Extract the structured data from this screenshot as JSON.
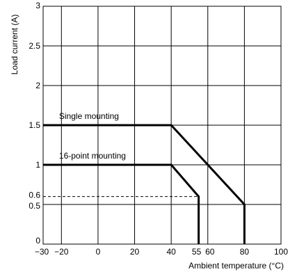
{
  "chart_data": {
    "type": "line",
    "xlabel": "Ambient temperature (°C)",
    "ylabel": "Load current (A)",
    "xlim": [
      -30,
      100
    ],
    "ylim": [
      0,
      3
    ],
    "x_ticks": [
      "−30",
      "−20",
      "0",
      "20",
      "40",
      "55",
      "60",
      "80",
      "100"
    ],
    "x_tick_values": [
      -30,
      -20,
      0,
      20,
      40,
      55,
      60,
      80,
      100
    ],
    "y_ticks": [
      "0",
      "0.5",
      "0.6",
      "1",
      "1.5",
      "2",
      "2.5",
      "3"
    ],
    "y_tick_values": [
      0,
      0.5,
      0.6,
      1,
      1.5,
      2,
      2.5,
      3
    ],
    "x_grid": [
      -20,
      0,
      20,
      40,
      60,
      80
    ],
    "y_grid": [
      0.5,
      1,
      1.5,
      2,
      2.5
    ],
    "grid": true,
    "series": [
      {
        "name": "Single mounting",
        "points": [
          [
            -30,
            1.5
          ],
          [
            40,
            1.5
          ],
          [
            80,
            0.5
          ],
          [
            80,
            0
          ]
        ]
      },
      {
        "name": "16-point mounting",
        "points": [
          [
            -30,
            1.0
          ],
          [
            40,
            1.0
          ],
          [
            55,
            0.6
          ],
          [
            55,
            0
          ]
        ]
      }
    ],
    "annotations": [
      {
        "text": "Single mounting",
        "x": -27,
        "y": 1.5
      },
      {
        "text": "16-point mounting",
        "x": -27,
        "y": 1.0
      }
    ],
    "reference_lines": [
      {
        "style": "dashed",
        "y": 0.6,
        "x_from": -30,
        "x_to": 55
      }
    ]
  }
}
